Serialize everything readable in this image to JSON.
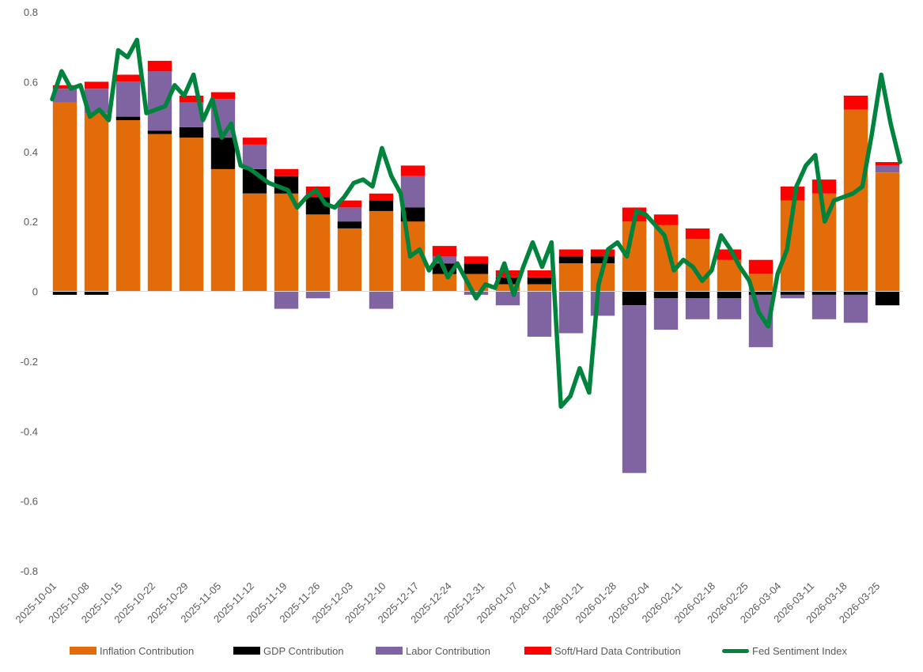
{
  "chart_data": {
    "type": "bar+line",
    "title": "",
    "ylim": [
      -0.8,
      0.8
    ],
    "yticks": [
      0.8,
      0.6,
      0.4,
      0.2,
      0,
      -0.2,
      -0.4,
      -0.6,
      -0.8
    ],
    "ytick_labels": [
      "0.8",
      "0.6",
      "0.4",
      "0.2",
      "0",
      "-0.2",
      "-0.4",
      "-0.6",
      "-0.8"
    ],
    "xtick_labels": [
      "2025-10-01",
      "2025-10-08",
      "2025-10-15",
      "2025-10-22",
      "2025-10-29",
      "2025-11-05",
      "2025-11-12",
      "2025-11-19",
      "2025-11-26",
      "2025-12-03",
      "2025-12-10",
      "2025-12-17",
      "2025-12-24",
      "2025-12-31",
      "2026-01-07",
      "2026-01-14",
      "2026-01-21",
      "2026-01-28",
      "2026-02-04",
      "2026-02-11",
      "2026-02-18",
      "2026-02-25",
      "2026-03-04",
      "2026-03-11",
      "2026-03-18",
      "2026-03-25"
    ],
    "weeks": [
      {
        "inflation": 0.54,
        "gdp": -0.01,
        "labor": 0.04,
        "data": 0.01,
        "index": 0.55
      },
      {
        "inflation": 0.51,
        "gdp": -0.01,
        "labor": 0.07,
        "data": 0.02,
        "index": 0.58
      },
      {
        "inflation": 0.49,
        "gdp": 0.01,
        "labor": 0.1,
        "data": 0.02,
        "index": 0.62
      },
      {
        "inflation": 0.45,
        "gdp": 0.01,
        "labor": 0.17,
        "data": 0.03,
        "index": 0.67
      },
      {
        "inflation": 0.44,
        "gdp": 0.03,
        "labor": 0.07,
        "data": 0.02,
        "index": 0.53
      },
      {
        "inflation": 0.35,
        "gdp": 0.09,
        "labor": 0.11,
        "data": 0.02,
        "index": 0.55
      },
      {
        "inflation": 0.28,
        "gdp": 0.07,
        "labor": 0.07,
        "data": 0.02,
        "index": 0.45
      },
      {
        "inflation": 0.28,
        "gdp": 0.05,
        "labor": -0.05,
        "data": 0.02,
        "index": 0.33
      },
      {
        "inflation": 0.22,
        "gdp": 0.05,
        "labor": -0.02,
        "data": 0.03,
        "index": 0.29
      },
      {
        "inflation": 0.18,
        "gdp": 0.02,
        "labor": 0.04,
        "data": 0.02,
        "index": 0.25
      },
      {
        "inflation": 0.23,
        "gdp": 0.03,
        "labor": -0.05,
        "data": 0.02,
        "index": 0.29
      },
      {
        "inflation": 0.2,
        "gdp": 0.04,
        "labor": 0.09,
        "data": 0.03,
        "index": 0.35
      },
      {
        "inflation": 0.05,
        "gdp": 0.03,
        "labor": 0.02,
        "data": 0.03,
        "index": 0.12
      },
      {
        "inflation": 0.05,
        "gdp": 0.03,
        "labor": -0.01,
        "data": 0.02,
        "index": 0.09
      },
      {
        "inflation": 0.02,
        "gdp": 0.02,
        "labor": -0.04,
        "data": 0.02,
        "index": 0.02
      },
      {
        "inflation": 0.02,
        "gdp": 0.02,
        "labor": -0.13,
        "data": 0.02,
        "index": 0.01
      },
      {
        "inflation": 0.08,
        "gdp": 0.02,
        "labor": -0.12,
        "data": 0.02,
        "index": 0.08
      },
      {
        "inflation": 0.08,
        "gdp": 0.02,
        "labor": -0.07,
        "data": 0.02,
        "index": 0.08
      },
      {
        "inflation": 0.2,
        "gdp": -0.04,
        "labor": -0.48,
        "data": 0.04,
        "index": -0.28
      },
      {
        "inflation": 0.19,
        "gdp": -0.02,
        "labor": -0.09,
        "data": 0.03,
        "index": 0.17
      },
      {
        "inflation": 0.15,
        "gdp": -0.02,
        "labor": -0.06,
        "data": 0.03,
        "index": 0.12
      },
      {
        "inflation": 0.09,
        "gdp": -0.02,
        "labor": -0.06,
        "data": 0.03,
        "index": 0.1
      },
      {
        "inflation": 0.05,
        "gdp": -0.01,
        "labor": -0.15,
        "data": 0.04,
        "index": -0.02
      },
      {
        "inflation": 0.26,
        "gdp": -0.01,
        "labor": -0.01,
        "data": 0.04,
        "index": 0.3
      },
      {
        "inflation": 0.28,
        "gdp": -0.01,
        "labor": -0.07,
        "data": 0.04,
        "index": 0.28
      },
      {
        "inflation": 0.52,
        "gdp": -0.01,
        "labor": -0.08,
        "data": 0.04,
        "index": 0.55
      },
      {
        "inflation": 0.34,
        "gdp": -0.04,
        "labor": 0.02,
        "data": 0.01,
        "index": 0.37
      }
    ],
    "index_line": [
      0.55,
      0.63,
      0.58,
      0.59,
      0.5,
      0.52,
      0.49,
      0.69,
      0.67,
      0.72,
      0.51,
      0.52,
      0.53,
      0.59,
      0.56,
      0.62,
      0.49,
      0.55,
      0.44,
      0.48,
      0.36,
      0.35,
      0.33,
      0.31,
      0.3,
      0.29,
      0.24,
      0.27,
      0.29,
      0.25,
      0.24,
      0.27,
      0.31,
      0.32,
      0.3,
      0.41,
      0.33,
      0.28,
      0.1,
      0.12,
      0.06,
      0.1,
      0.04,
      0.08,
      0.03,
      -0.02,
      0.02,
      0.01,
      0.08,
      -0.01,
      0.07,
      0.14,
      0.07,
      0.14,
      -0.33,
      -0.3,
      -0.22,
      -0.29,
      0.02,
      0.12,
      0.14,
      0.1,
      0.23,
      0.22,
      0.19,
      0.16,
      0.06,
      0.09,
      0.07,
      0.03,
      0.06,
      0.16,
      0.12,
      0.07,
      0.03,
      -0.06,
      -0.1,
      0.05,
      0.12,
      0.3,
      0.36,
      0.39,
      0.2,
      0.26,
      0.27,
      0.28,
      0.3,
      0.45,
      0.62,
      0.48,
      0.37
    ]
  },
  "legend": {
    "inflation": {
      "label": "Inflation Contribution",
      "color": "#E36C0A"
    },
    "gdp": {
      "label": "GDP Contribution",
      "color": "#000000"
    },
    "labor": {
      "label": "Labor Contribution",
      "color": "#8064A2"
    },
    "data": {
      "label": "Soft/Hard Data Contribution",
      "color": "#FF0000"
    },
    "index": {
      "label": "Fed Sentiment Index",
      "color": "#00843D"
    }
  }
}
